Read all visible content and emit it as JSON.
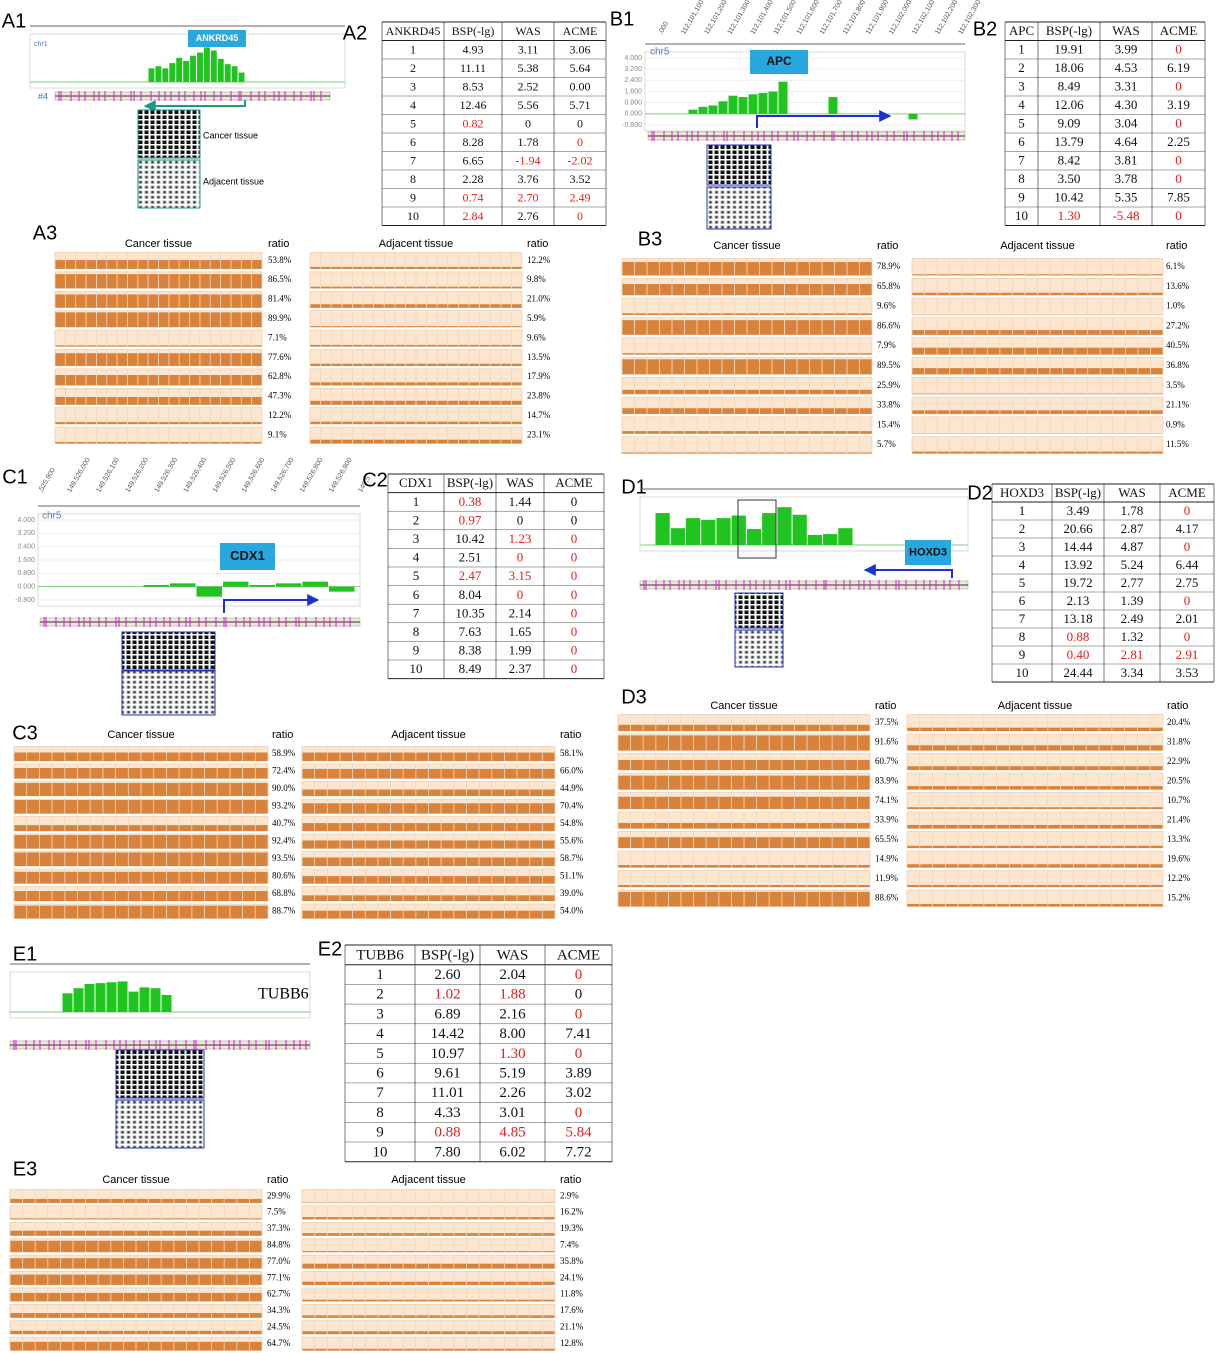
{
  "red_color": "#e0201b",
  "panels": [
    {
      "track": {
        "label": "A1",
        "chrom": "chr1",
        "marker": "#4",
        "gene": "ANKRD45",
        "ylim": [
          0,
          4
        ],
        "bars": [
          1.3,
          1.5,
          1.3,
          1.8,
          2.3,
          2.0,
          2.5,
          2.8,
          3.3,
          3.0,
          2.2,
          1.7,
          1.5,
          0.9
        ],
        "grid_labels": [
          "Cancer tissue",
          "Adjacent tissue"
        ]
      },
      "table": {
        "label": "A2",
        "header": [
          "ANKRD45",
          "BSP(-lg)",
          "WAS",
          "ACME"
        ],
        "rows": [
          [
            "1",
            "4.93",
            "3.11",
            "3.06"
          ],
          [
            "2",
            "11.11",
            "5.38",
            "5.64"
          ],
          [
            "3",
            "8.53",
            "2.52",
            "0.00"
          ],
          [
            "4",
            "12.46",
            "5.56",
            "5.71"
          ],
          [
            "5",
            "0.82",
            "0",
            "0"
          ],
          [
            "6",
            "8.28",
            "1.78",
            "0"
          ],
          [
            "7",
            "6.65",
            "-1.94",
            "-2.02"
          ],
          [
            "8",
            "2.28",
            "3.76",
            "3.52"
          ],
          [
            "9",
            "0.74",
            "2.70",
            "2.49"
          ],
          [
            "10",
            "2.84",
            "2.76",
            "0"
          ]
        ],
        "red_cells": [
          [
            4,
            1
          ],
          [
            5,
            3
          ],
          [
            6,
            2
          ],
          [
            6,
            3
          ],
          [
            8,
            1
          ],
          [
            8,
            2
          ],
          [
            8,
            3
          ],
          [
            9,
            1
          ],
          [
            9,
            3
          ]
        ]
      },
      "ratios": {
        "label": "A3",
        "cancer_title": "Cancer tissue",
        "adjacent_title": "Adjacent tissue",
        "ratio_header": "ratio",
        "cancer": {
          "values": [
            53.8,
            86.5,
            81.4,
            89.9,
            7.1,
            77.6,
            62.8,
            47.3,
            12.2,
            9.1
          ],
          "value_labels": [
            "53.8%",
            "86.5%",
            "81.4%",
            "89.9%",
            "7.1%",
            "77.6%",
            "62.8%",
            "47.3%",
            "12.2%",
            "9.1%"
          ]
        },
        "adjacent": {
          "values": [
            12.2,
            9.8,
            21.0,
            5.9,
            9.6,
            13.5,
            17.9,
            23.8,
            14.7,
            23.1
          ],
          "value_labels": [
            "12.2%",
            "9.8%",
            "21.0%",
            "5.9%",
            "9.6%",
            "13.5%",
            "17.9%",
            "23.8%",
            "14.7%",
            "23.1%"
          ]
        }
      }
    },
    {
      "track": {
        "label": "B1",
        "chrom": "chr5",
        "gene": "APC",
        "ylim": [
          -0.8,
          4
        ],
        "yticks": [
          {
            "value": 4,
            "label": "4.000"
          },
          {
            "value": 3.2,
            "label": "3.200"
          },
          {
            "value": 2.4,
            "label": "2.400"
          },
          {
            "value": 1.6,
            "label": "1.600"
          },
          {
            "value": 0.8,
            "label": "0.800"
          },
          {
            "value": 0,
            "label": "0.000"
          },
          {
            "value": -0.8,
            "label": "-0.800"
          }
        ],
        "x_labels": [
          ",000",
          "112,101,100",
          "112,101,200",
          "112,101,300",
          "112,101,400",
          "112,101,500",
          "112,101,600",
          "112,101,700",
          "112,101,800",
          "112,101,900",
          "112,102,000",
          "112,102,100",
          "112,102,200",
          "112,102,300"
        ],
        "bars": [
          0.3,
          0.5,
          0.6,
          0.9,
          1.3,
          1.2,
          1.4,
          1.5,
          1.6,
          2.3,
          null,
          null,
          null,
          null,
          1.2,
          null,
          null,
          null,
          null,
          null,
          null,
          null,
          -0.4,
          null
        ]
      },
      "table": {
        "label": "B2",
        "header": [
          "APC",
          "BSP(-lg)",
          "WAS",
          "ACME"
        ],
        "rows": [
          [
            "1",
            "19.91",
            "3.99",
            "0"
          ],
          [
            "2",
            "18.06",
            "4.53",
            "6.19"
          ],
          [
            "3",
            "8.49",
            "3.31",
            "0"
          ],
          [
            "4",
            "12.06",
            "4.30",
            "3.19"
          ],
          [
            "5",
            "9.09",
            "3.04",
            "0"
          ],
          [
            "6",
            "13.79",
            "4.64",
            "2.25"
          ],
          [
            "7",
            "8.42",
            "3.81",
            "0"
          ],
          [
            "8",
            "3.50",
            "3.78",
            "0"
          ],
          [
            "9",
            "10.42",
            "5.35",
            "7.85"
          ],
          [
            "10",
            "1.30",
            "-5.48",
            "0"
          ]
        ],
        "red_cells": [
          [
            0,
            3
          ],
          [
            2,
            3
          ],
          [
            4,
            3
          ],
          [
            6,
            3
          ],
          [
            7,
            3
          ],
          [
            9,
            1
          ],
          [
            9,
            2
          ],
          [
            9,
            3
          ]
        ]
      },
      "ratios": {
        "label": "B3",
        "cancer_title": "Cancer tissue",
        "adjacent_title": "Adjacent tissue",
        "ratio_header": "ratio",
        "cancer": {
          "values": [
            78.9,
            65.8,
            9.6,
            86.6,
            7.9,
            89.5,
            25.9,
            33.8,
            15.4,
            5.7
          ],
          "value_labels": [
            "78.9%",
            "65.8%",
            "9.6%",
            "86.6%",
            "7.9%",
            "89.5%",
            "25.9%",
            "33.8%",
            "15.4%",
            "5.7%"
          ]
        },
        "adjacent": {
          "values": [
            6.1,
            13.6,
            1.0,
            27.2,
            40.5,
            36.8,
            3.5,
            21.1,
            0.9,
            11.5
          ],
          "value_labels": [
            "6.1%",
            "13.6%",
            "1.0%",
            "27.2%",
            "40.5%",
            "36.8%",
            "3.5%",
            "21.1%",
            "0.9%",
            "11.5%"
          ]
        }
      }
    },
    {
      "track": {
        "label": "C1",
        "chrom": "chr5",
        "gene": "CDX1",
        "ylim": [
          -0.8,
          4
        ],
        "yticks": [
          {
            "value": 4,
            "label": "4.000"
          },
          {
            "value": 3.2,
            "label": "3.200"
          },
          {
            "value": 2.4,
            "label": "2.400"
          },
          {
            "value": 1.6,
            "label": "1.600"
          },
          {
            "value": 0.8,
            "label": "0.800"
          },
          {
            "value": 0,
            "label": "0.000"
          },
          {
            "value": -0.8,
            "label": "-0.800"
          }
        ],
        "x_labels": [
          ",525,900",
          "149,526,000",
          "149,526,100",
          "149,526,200",
          "149,526,300",
          "149,526,400",
          "149,526,500",
          "149,526,600",
          "149,526,700",
          "149,526,800",
          "149,526,900",
          "149,5"
        ],
        "bars": [
          0.1,
          0.2,
          -0.6,
          0.3,
          0.1,
          0.2,
          0.3,
          -0.3
        ]
      },
      "table": {
        "label": "C2",
        "header": [
          "CDX1",
          "BSP(-lg)",
          "WAS",
          "ACME"
        ],
        "rows": [
          [
            "1",
            "0.38",
            "1.44",
            "0"
          ],
          [
            "2",
            "0.97",
            "0",
            "0"
          ],
          [
            "3",
            "10.42",
            "1.23",
            "0"
          ],
          [
            "4",
            "2.51",
            "0",
            "0"
          ],
          [
            "5",
            "2.47",
            "3.15",
            "0"
          ],
          [
            "6",
            "8.04",
            "0",
            "0"
          ],
          [
            "7",
            "10.35",
            "2.14",
            "0"
          ],
          [
            "8",
            "7.63",
            "1.65",
            "0"
          ],
          [
            "9",
            "8.38",
            "1.99",
            "0"
          ],
          [
            "10",
            "8.49",
            "2.37",
            "0"
          ]
        ],
        "red_cells": [
          [
            0,
            1
          ],
          [
            1,
            1
          ],
          [
            2,
            2
          ],
          [
            2,
            3
          ],
          [
            3,
            2
          ],
          [
            3,
            3
          ],
          [
            4,
            1
          ],
          [
            4,
            2
          ],
          [
            4,
            3
          ],
          [
            5,
            2
          ],
          [
            5,
            3
          ],
          [
            6,
            3
          ],
          [
            7,
            3
          ],
          [
            8,
            3
          ],
          [
            9,
            3
          ]
        ]
      },
      "ratios": {
        "label": "C3",
        "cancer_title": "Cancer tissue",
        "adjacent_title": "Adjacent tissue",
        "ratio_header": "ratio",
        "cancer": {
          "values": [
            58.9,
            72.4,
            90.0,
            93.2,
            40.7,
            92.4,
            93.5,
            80.6,
            68.8,
            88.7
          ],
          "value_labels": [
            "58.9%",
            "72.4%",
            "90.0%",
            "93.2%",
            "40.7%",
            "92.4%",
            "93.5%",
            "80.6%",
            "68.8%",
            "88.7%"
          ]
        },
        "adjacent": {
          "values": [
            58.1,
            66.0,
            44.9,
            70.4,
            54.8,
            55.6,
            58.7,
            51.1,
            39.0,
            54.0
          ],
          "value_labels": [
            "58.1%",
            "66.0%",
            "44.9%",
            "70.4%",
            "54.8%",
            "55.6%",
            "58.7%",
            "51.1%",
            "39.0%",
            "54.0%"
          ]
        }
      }
    },
    {
      "track": {
        "label": "D1",
        "gene": "HOXD3",
        "ylim": [
          0,
          5
        ],
        "bars": [
          3.8,
          2.0,
          3.2,
          3.0,
          3.2,
          3.5,
          1.9,
          3.8,
          4.5,
          3.6,
          1.2,
          1.3,
          2.0
        ]
      },
      "table": {
        "label": "D2",
        "header": [
          "HOXD3",
          "BSP(-lg)",
          "WAS",
          "ACME"
        ],
        "rows": [
          [
            "1",
            "3.49",
            "1.78",
            "0"
          ],
          [
            "2",
            "20.66",
            "2.87",
            "4.17"
          ],
          [
            "3",
            "14.44",
            "4.87",
            "0"
          ],
          [
            "4",
            "13.92",
            "5.24",
            "6.44"
          ],
          [
            "5",
            "19.72",
            "2.77",
            "2.75"
          ],
          [
            "6",
            "2.13",
            "1.39",
            "0"
          ],
          [
            "7",
            "13.18",
            "2.49",
            "2.01"
          ],
          [
            "8",
            "0.88",
            "1.32",
            "0"
          ],
          [
            "9",
            "0.40",
            "2.81",
            "2.91"
          ],
          [
            "10",
            "24.44",
            "3.34",
            "3.53"
          ]
        ],
        "red_cells": [
          [
            0,
            3
          ],
          [
            2,
            3
          ],
          [
            5,
            3
          ],
          [
            7,
            1
          ],
          [
            7,
            3
          ],
          [
            8,
            1
          ],
          [
            8,
            2
          ],
          [
            8,
            3
          ]
        ]
      },
      "ratios": {
        "label": "D3",
        "cancer_title": "Cancer tissue",
        "adjacent_title": "Adjacent tissue",
        "ratio_header": "ratio",
        "cancer": {
          "values": [
            37.5,
            91.6,
            60.7,
            83.9,
            74.1,
            33.9,
            65.5,
            14.9,
            11.9,
            88.6
          ],
          "value_labels": [
            "37.5%",
            "91.6%",
            "60.7%",
            "83.9%",
            "74.1%",
            "33.9%",
            "65.5%",
            "14.9%",
            "11.9%",
            "88.6%"
          ]
        },
        "adjacent": {
          "values": [
            20.4,
            31.8,
            22.9,
            20.5,
            10.7,
            21.4,
            13.3,
            19.6,
            12.2,
            15.2
          ],
          "value_labels": [
            "20.4%",
            "31.8%",
            "22.9%",
            "20.5%",
            "10.7%",
            "21.4%",
            "13.3%",
            "19.6%",
            "12.2%",
            "15.2%"
          ]
        }
      }
    },
    {
      "track": {
        "label": "E1",
        "gene": "TUBB6",
        "ylim": [
          0,
          4
        ],
        "bars": [
          2.2,
          2.8,
          3.3,
          3.4,
          3.5,
          3.6,
          2.4,
          2.9,
          2.8,
          2.0
        ]
      },
      "table": {
        "label": "E2",
        "header": [
          "TUBB6",
          "BSP(-lg)",
          "WAS",
          "ACME"
        ],
        "rows": [
          [
            "1",
            "2.60",
            "2.04",
            "0"
          ],
          [
            "2",
            "1.02",
            "1.88",
            "0"
          ],
          [
            "3",
            "6.89",
            "2.16",
            "0"
          ],
          [
            "4",
            "14.42",
            "8.00",
            "7.41"
          ],
          [
            "5",
            "10.97",
            "1.30",
            "0"
          ],
          [
            "6",
            "9.61",
            "5.19",
            "3.89"
          ],
          [
            "7",
            "11.01",
            "2.26",
            "3.02"
          ],
          [
            "8",
            "4.33",
            "3.01",
            "0"
          ],
          [
            "9",
            "0.88",
            "4.85",
            "5.84"
          ],
          [
            "10",
            "7.80",
            "6.02",
            "7.72"
          ]
        ],
        "red_cells": [
          [
            0,
            3
          ],
          [
            1,
            1
          ],
          [
            1,
            2
          ],
          [
            2,
            3
          ],
          [
            4,
            2
          ],
          [
            4,
            3
          ],
          [
            7,
            3
          ],
          [
            8,
            1
          ],
          [
            8,
            2
          ],
          [
            8,
            3
          ]
        ]
      },
      "ratios": {
        "label": "E3",
        "cancer_title": "Cancer tissue",
        "adjacent_title": "Adjacent tissue",
        "ratio_header": "ratio",
        "cancer": {
          "values": [
            29.9,
            7.5,
            37.3,
            84.8,
            77.0,
            77.1,
            62.7,
            34.3,
            24.5,
            64.7
          ],
          "value_labels": [
            "29.9%",
            "7.5%",
            "37.3%",
            "84.8%",
            "77.0%",
            "77.1%",
            "62.7%",
            "34.3%",
            "24.5%",
            "64.7%"
          ]
        },
        "adjacent": {
          "values": [
            2.9,
            16.2,
            19.3,
            7.4,
            35.8,
            24.1,
            11.8,
            17.6,
            21.1,
            12.8
          ],
          "value_labels": [
            "2.9%",
            "16.2%",
            "19.3%",
            "7.4%",
            "35.8%",
            "24.1%",
            "11.8%",
            "17.6%",
            "21.1%",
            "12.8%"
          ]
        }
      }
    }
  ]
}
